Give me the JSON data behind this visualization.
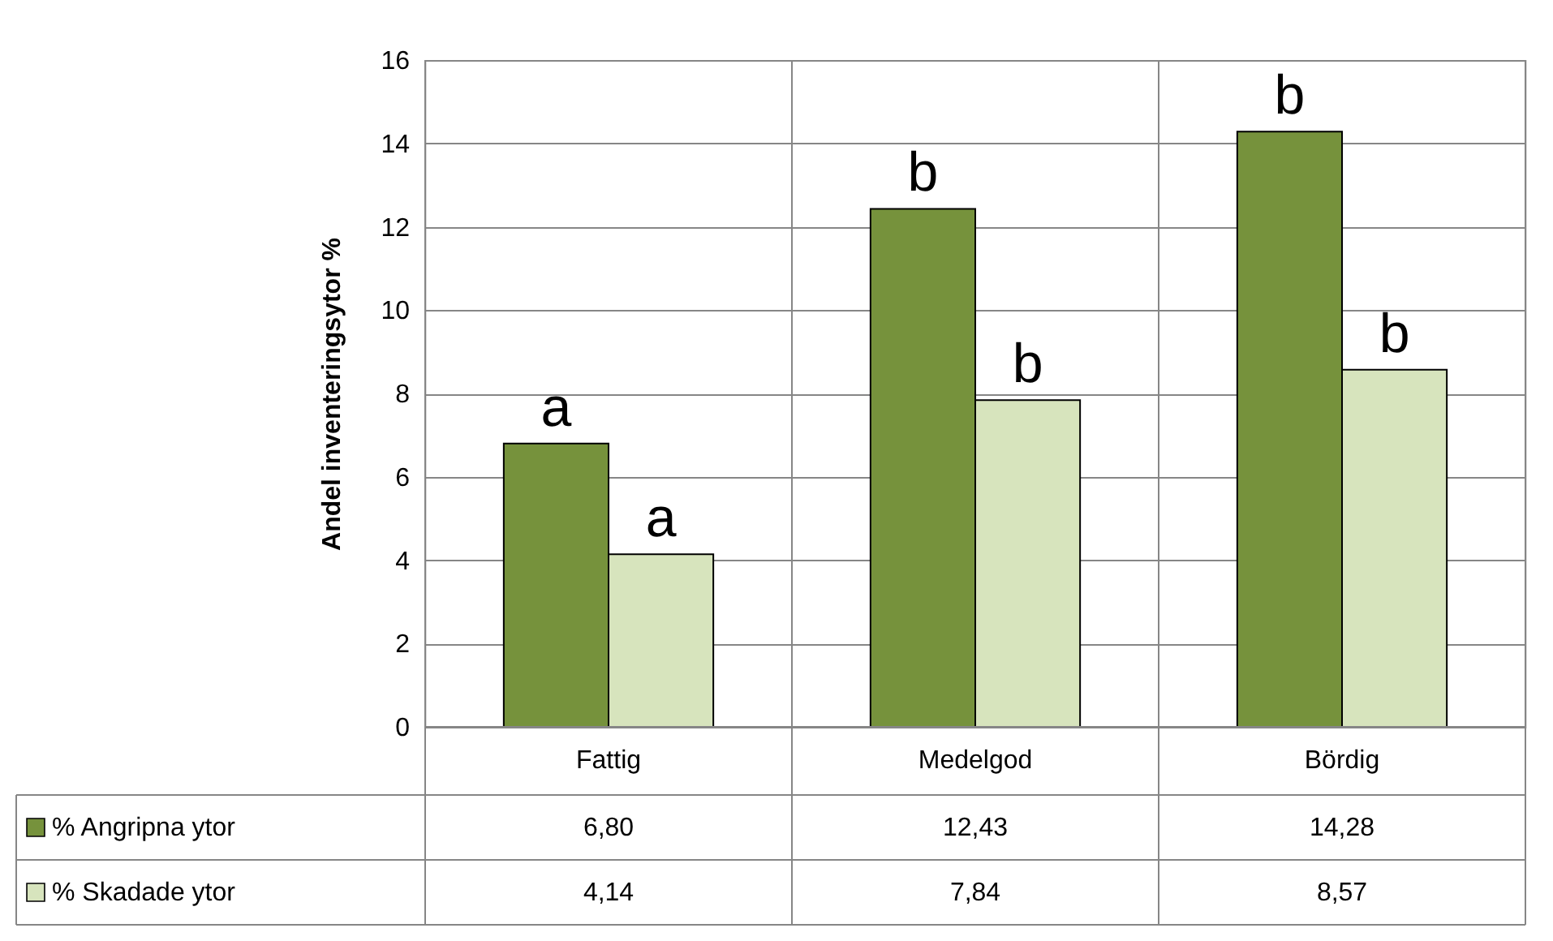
{
  "chart_data": {
    "type": "bar",
    "ylabel": "Andel inventeringsytor %",
    "categories": [
      "Fattig",
      "Medelgod",
      "Bördig"
    ],
    "series": [
      {
        "name": "% Angripna ytor",
        "color": "#76923c",
        "values": [
          6.8,
          12.43,
          14.28
        ],
        "value_labels": [
          "6,80",
          "12,43",
          "14,28"
        ]
      },
      {
        "name": "% Skadade ytor",
        "color": "#d7e4bd",
        "values": [
          4.14,
          7.84,
          8.57
        ],
        "value_labels": [
          "4,14",
          "7,84",
          "8,57"
        ]
      }
    ],
    "ylim": [
      0,
      16
    ],
    "yticks": [
      0,
      2,
      4,
      6,
      8,
      10,
      12,
      14,
      16
    ],
    "grid": "y",
    "legend": "bottom left",
    "annotations": [
      {
        "text": "a",
        "x": "Fattig",
        "y": 6.8
      },
      {
        "text": "a",
        "x": "Fattig",
        "y": 4.14
      },
      {
        "text": "b",
        "x": "Medelgod",
        "y": 12.43
      },
      {
        "text": "b",
        "x": "Medelgod",
        "y": 7.84
      },
      {
        "text": "b",
        "x": "Bördig",
        "y": 14.28
      },
      {
        "text": "b",
        "x": "Bördig",
        "y": 8.57
      }
    ]
  }
}
